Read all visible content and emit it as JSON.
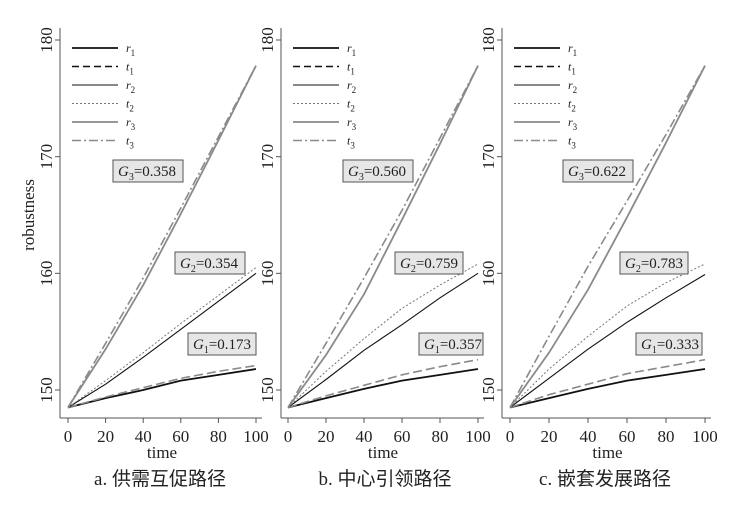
{
  "chart_data": [
    {
      "type": "line",
      "caption": "a. 供需互促路径",
      "xlabel": "time",
      "ylabel": "robustness",
      "xlim": [
        0,
        100
      ],
      "ylim": [
        147.5,
        180.5
      ],
      "xticks": [
        "0",
        "20",
        "40",
        "60",
        "80",
        "100"
      ],
      "yticks": [
        "150",
        "160",
        "170",
        "180"
      ],
      "x": [
        0,
        20,
        40,
        60,
        80,
        100
      ],
      "series": [
        {
          "name": "r",
          "sub": "1",
          "values": [
            148.5,
            149.3,
            150.0,
            150.8,
            151.3,
            151.8
          ]
        },
        {
          "name": "t",
          "sub": "1",
          "values": [
            148.5,
            149.4,
            150.2,
            151.0,
            151.6,
            152.1
          ]
        },
        {
          "name": "r",
          "sub": "2",
          "values": [
            148.5,
            150.5,
            152.8,
            155.2,
            157.6,
            160.0
          ]
        },
        {
          "name": "t",
          "sub": "2",
          "values": [
            148.5,
            150.8,
            153.2,
            155.7,
            158.1,
            160.5
          ]
        },
        {
          "name": "r",
          "sub": "3",
          "values": [
            148.5,
            153.5,
            159.0,
            165.1,
            171.4,
            177.8
          ]
        },
        {
          "name": "t",
          "sub": "3",
          "values": [
            148.5,
            154.0,
            159.6,
            165.6,
            171.7,
            177.8
          ]
        }
      ],
      "annotations": [
        {
          "g": "G",
          "sub": "3",
          "text": "=0.358"
        },
        {
          "g": "G",
          "sub": "2",
          "text": "=0.354"
        },
        {
          "g": "G",
          "sub": "1",
          "text": "=0.173"
        }
      ]
    },
    {
      "type": "line",
      "caption": "b. 中心引领路径",
      "xlabel": "time",
      "ylabel": "",
      "xlim": [
        0,
        100
      ],
      "ylim": [
        147.5,
        180.5
      ],
      "xticks": [
        "0",
        "20",
        "40",
        "60",
        "80",
        "100"
      ],
      "yticks": [
        "150",
        "160",
        "170",
        "180"
      ],
      "x": [
        0,
        20,
        40,
        60,
        80,
        100
      ],
      "series": [
        {
          "name": "r",
          "sub": "1",
          "values": [
            148.5,
            149.3,
            150.1,
            150.8,
            151.3,
            151.8
          ]
        },
        {
          "name": "t",
          "sub": "1",
          "values": [
            148.5,
            149.5,
            150.4,
            151.3,
            152.0,
            152.6
          ]
        },
        {
          "name": "r",
          "sub": "2",
          "values": [
            148.5,
            150.9,
            153.4,
            155.6,
            157.9,
            160.0
          ]
        },
        {
          "name": "t",
          "sub": "2",
          "values": [
            148.5,
            151.6,
            154.4,
            157.0,
            159.0,
            160.8
          ]
        },
        {
          "name": "r",
          "sub": "3",
          "values": [
            148.5,
            153.0,
            158.2,
            164.6,
            171.1,
            177.8
          ]
        },
        {
          "name": "t",
          "sub": "3",
          "values": [
            148.5,
            154.0,
            159.6,
            165.4,
            171.6,
            177.8
          ]
        }
      ],
      "annotations": [
        {
          "g": "G",
          "sub": "3",
          "text": "=0.560"
        },
        {
          "g": "G",
          "sub": "2",
          "text": "=0.759"
        },
        {
          "g": "G",
          "sub": "1",
          "text": "=0.357"
        }
      ]
    },
    {
      "type": "line",
      "caption": "c. 嵌套发展路径",
      "xlabel": "time",
      "ylabel": "",
      "xlim": [
        0,
        100
      ],
      "ylim": [
        147.5,
        180.5
      ],
      "xticks": [
        "0",
        "20",
        "40",
        "60",
        "80",
        "100"
      ],
      "yticks": [
        "150",
        "160",
        "170",
        "180"
      ],
      "x": [
        0,
        20,
        40,
        60,
        80,
        100
      ],
      "series": [
        {
          "name": "r",
          "sub": "1",
          "values": [
            148.5,
            149.3,
            150.1,
            150.8,
            151.3,
            151.8
          ]
        },
        {
          "name": "t",
          "sub": "1",
          "values": [
            148.5,
            149.6,
            150.5,
            151.4,
            152.0,
            152.6
          ]
        },
        {
          "name": "r",
          "sub": "2",
          "values": [
            148.5,
            151.0,
            153.5,
            155.8,
            157.9,
            159.9
          ]
        },
        {
          "name": "t",
          "sub": "2",
          "values": [
            148.5,
            151.8,
            154.6,
            157.2,
            159.2,
            160.8
          ]
        },
        {
          "name": "r",
          "sub": "3",
          "values": [
            148.5,
            153.2,
            158.6,
            164.8,
            171.2,
            177.8
          ]
        },
        {
          "name": "t",
          "sub": "3",
          "values": [
            148.5,
            154.6,
            160.6,
            166.2,
            171.9,
            177.8
          ]
        }
      ],
      "annotations": [
        {
          "g": "G",
          "sub": "3",
          "text": "=0.622"
        },
        {
          "g": "G",
          "sub": "2",
          "text": "=0.783"
        },
        {
          "g": "G",
          "sub": "1",
          "text": "=0.333"
        }
      ]
    }
  ],
  "colors": {
    "black": "#111111",
    "gray": "#8a8a8a",
    "box": "#e6e6e6"
  }
}
